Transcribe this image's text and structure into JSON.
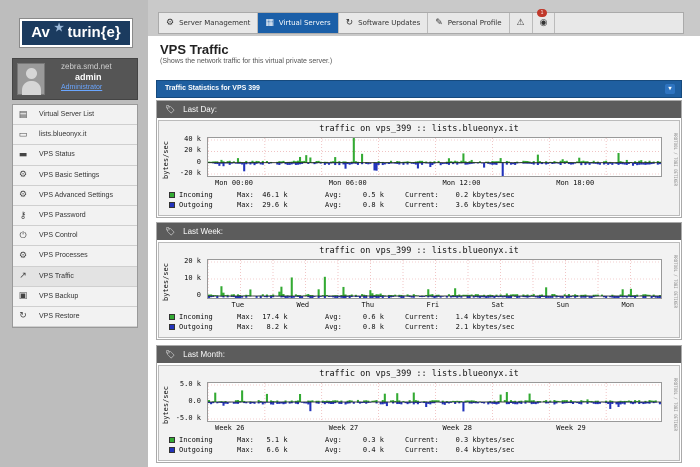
{
  "brand": {
    "logo_text": "Aventurin{e}",
    "star": "★"
  },
  "user": {
    "host": "zebra.smd.net",
    "name": "admin",
    "link": "Administrator"
  },
  "sidebar": {
    "items": [
      {
        "label": "Virtual Server List",
        "icon": "list-icon",
        "glyph": "▤"
      },
      {
        "label": "lists.blueonyx.it",
        "icon": "laptop-icon",
        "glyph": "▭"
      },
      {
        "label": "VPS Status",
        "icon": "server-icon",
        "glyph": "▬"
      },
      {
        "label": "VPS Basic Settings",
        "icon": "gear-icon",
        "glyph": "⚙"
      },
      {
        "label": "VPS Advanced Settings",
        "icon": "gear-icon",
        "glyph": "⚙"
      },
      {
        "label": "VPS Password",
        "icon": "key-icon",
        "glyph": "⚷"
      },
      {
        "label": "VPS Control",
        "icon": "plug-icon",
        "glyph": "⏻"
      },
      {
        "label": "VPS Processes",
        "icon": "cog-icon",
        "glyph": "⚙"
      },
      {
        "label": "VPS Traffic",
        "icon": "chart-icon",
        "glyph": "↗"
      },
      {
        "label": "VPS Backup",
        "icon": "backup-icon",
        "glyph": "▣"
      },
      {
        "label": "VPS Restore",
        "icon": "refresh-icon",
        "glyph": "↻"
      }
    ]
  },
  "tabs": [
    {
      "label": "Server Management",
      "glyph": "⚙",
      "icon": "gear-icon"
    },
    {
      "label": "Virtual Servers",
      "glyph": "▦",
      "icon": "grid-icon"
    },
    {
      "label": "Software Updates",
      "glyph": "↻",
      "icon": "refresh-icon"
    },
    {
      "label": "Personal Profile",
      "glyph": "✎",
      "icon": "pencil-icon"
    }
  ],
  "alerts": {
    "badge": "1",
    "warn_glyph": "⚠",
    "info_glyph": "◉"
  },
  "page": {
    "title": "VPS Traffic",
    "subtitle": "(Shows the network traffic for this virtual private server.)",
    "panel_title": "Traffic Statistics for VPS 399",
    "collapse_glyph": "▾"
  },
  "colors": {
    "incoming": "#33aa33",
    "outgoing": "#2233bb",
    "header_blue": "#1f5fa0"
  },
  "graphs": [
    {
      "card_title": "Last Day:",
      "title": "traffic on vps_399 :: lists.blueonyx.it",
      "ylabel": "bytes/sec",
      "side_text": "RRDTOOL / TOBI OETIKER",
      "yticks": [
        "40 k",
        "20 k",
        "0",
        "-20 k"
      ],
      "xticks": [
        "Mon 00:00",
        "Mon 06:00",
        "Mon 12:00",
        "Mon 18:00"
      ],
      "incoming": {
        "label": "Incoming",
        "max": "Max:  46.1 k",
        "avg": "Avg:     0.5 k",
        "current": "Current:    0.2 kbytes/sec"
      },
      "outgoing": {
        "label": "Outgoing",
        "max": "Max:  29.6 k",
        "avg": "Avg:     0.8 k",
        "current": "Current:    3.6 kbytes/sec"
      }
    },
    {
      "card_title": "Last Week:",
      "title": "traffic on vps_399 :: lists.blueonyx.it",
      "ylabel": "bytes/sec",
      "side_text": "RRDTOOL / TOBI OETIKER",
      "yticks": [
        "20 k",
        "10 k",
        "0"
      ],
      "xticks": [
        "Tue",
        "Wed",
        "Thu",
        "Fri",
        "Sat",
        "Sun",
        "Mon"
      ],
      "incoming": {
        "label": "Incoming",
        "max": "Max:  17.4 k",
        "avg": "Avg:     0.6 k",
        "current": "Current:    1.4 kbytes/sec"
      },
      "outgoing": {
        "label": "Outgoing",
        "max": "Max:   8.2 k",
        "avg": "Avg:     0.8 k",
        "current": "Current:    2.1 kbytes/sec"
      }
    },
    {
      "card_title": "Last Month:",
      "title": "traffic on vps_399 :: lists.blueonyx.it",
      "ylabel": "bytes/sec",
      "side_text": "RRDTOOL / TOBI OETIKER",
      "yticks": [
        "5.0 k",
        "0.0",
        "-5.0 k"
      ],
      "xticks": [
        "Week 26",
        "Week 27",
        "Week 28",
        "Week 29"
      ],
      "incoming": {
        "label": "Incoming",
        "max": "Max:   5.1 k",
        "avg": "Avg:     0.3 k",
        "current": "Current:    0.3 kbytes/sec"
      },
      "outgoing": {
        "label": "Outgoing",
        "max": "Max:   6.6 k",
        "avg": "Avg:     0.4 k",
        "current": "Current:    0.4 kbytes/sec"
      }
    }
  ]
}
